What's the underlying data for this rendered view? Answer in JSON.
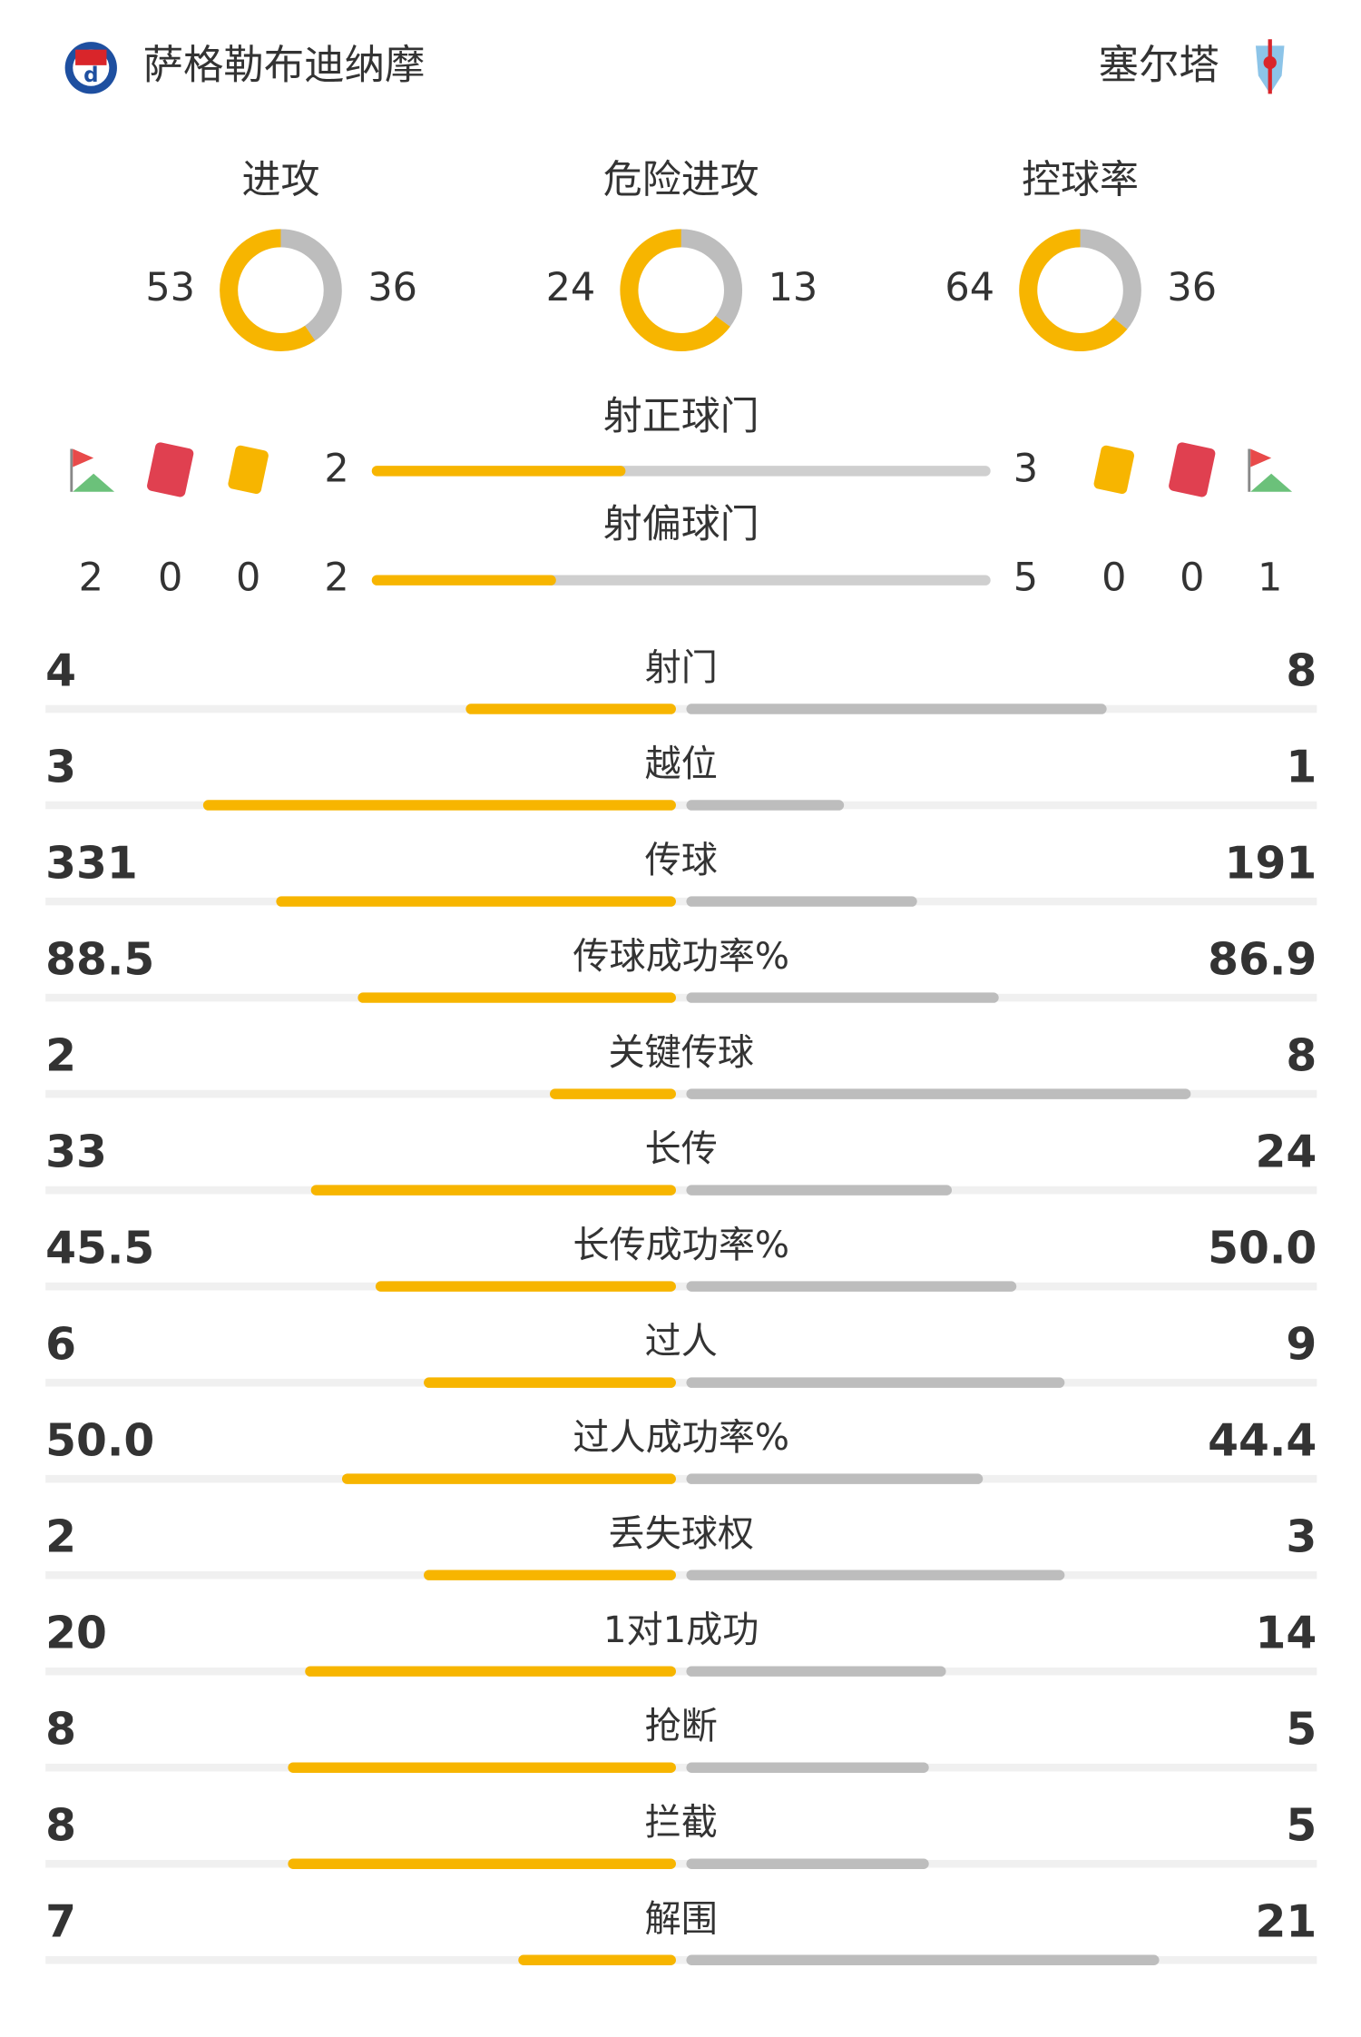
{
  "teams": {
    "home": "萨格勒布迪纳摩",
    "away": "塞尔塔"
  },
  "donuts": [
    {
      "label": "进攻",
      "home": 53,
      "away": 36
    },
    {
      "label": "危险进攻",
      "home": 24,
      "away": 13
    },
    {
      "label": "控球率",
      "home": 64,
      "away": 36
    }
  ],
  "shots_on": {
    "label": "射正球门",
    "home": 2,
    "away": 3
  },
  "shots_off": {
    "label": "射偏球门",
    "home": 2,
    "away": 5
  },
  "cards": {
    "home": {
      "corners": 2,
      "red": 0,
      "yellow": 0
    },
    "away": {
      "yellow": 0,
      "red": 0,
      "corners": 1
    }
  },
  "stats": [
    {
      "label": "射门",
      "home": 4,
      "away": 8
    },
    {
      "label": "越位",
      "home": 3,
      "away": 1
    },
    {
      "label": "传球",
      "home": 331,
      "away": 191
    },
    {
      "label": "传球成功率%",
      "home": 88.5,
      "away": 86.9
    },
    {
      "label": "关键传球",
      "home": 2,
      "away": 8
    },
    {
      "label": "长传",
      "home": 33,
      "away": 24
    },
    {
      "label": "长传成功率%",
      "home": 45.5,
      "away": {
        "value": 50,
        "label": "50.0"
      }
    },
    {
      "label": "过人",
      "home": 6,
      "away": 9
    },
    {
      "label": "过人成功率%",
      "home": {
        "value": 50,
        "label": "50.0"
      },
      "away": 44.4
    },
    {
      "label": "丢失球权",
      "home": 2,
      "away": 3
    },
    {
      "label": "1对1成功",
      "home": 20,
      "away": 14
    },
    {
      "label": "抢断",
      "home": 8,
      "away": 5
    },
    {
      "label": "拦截",
      "home": 8,
      "away": 5
    },
    {
      "label": "解围",
      "home": 7,
      "away": 21
    }
  ]
}
